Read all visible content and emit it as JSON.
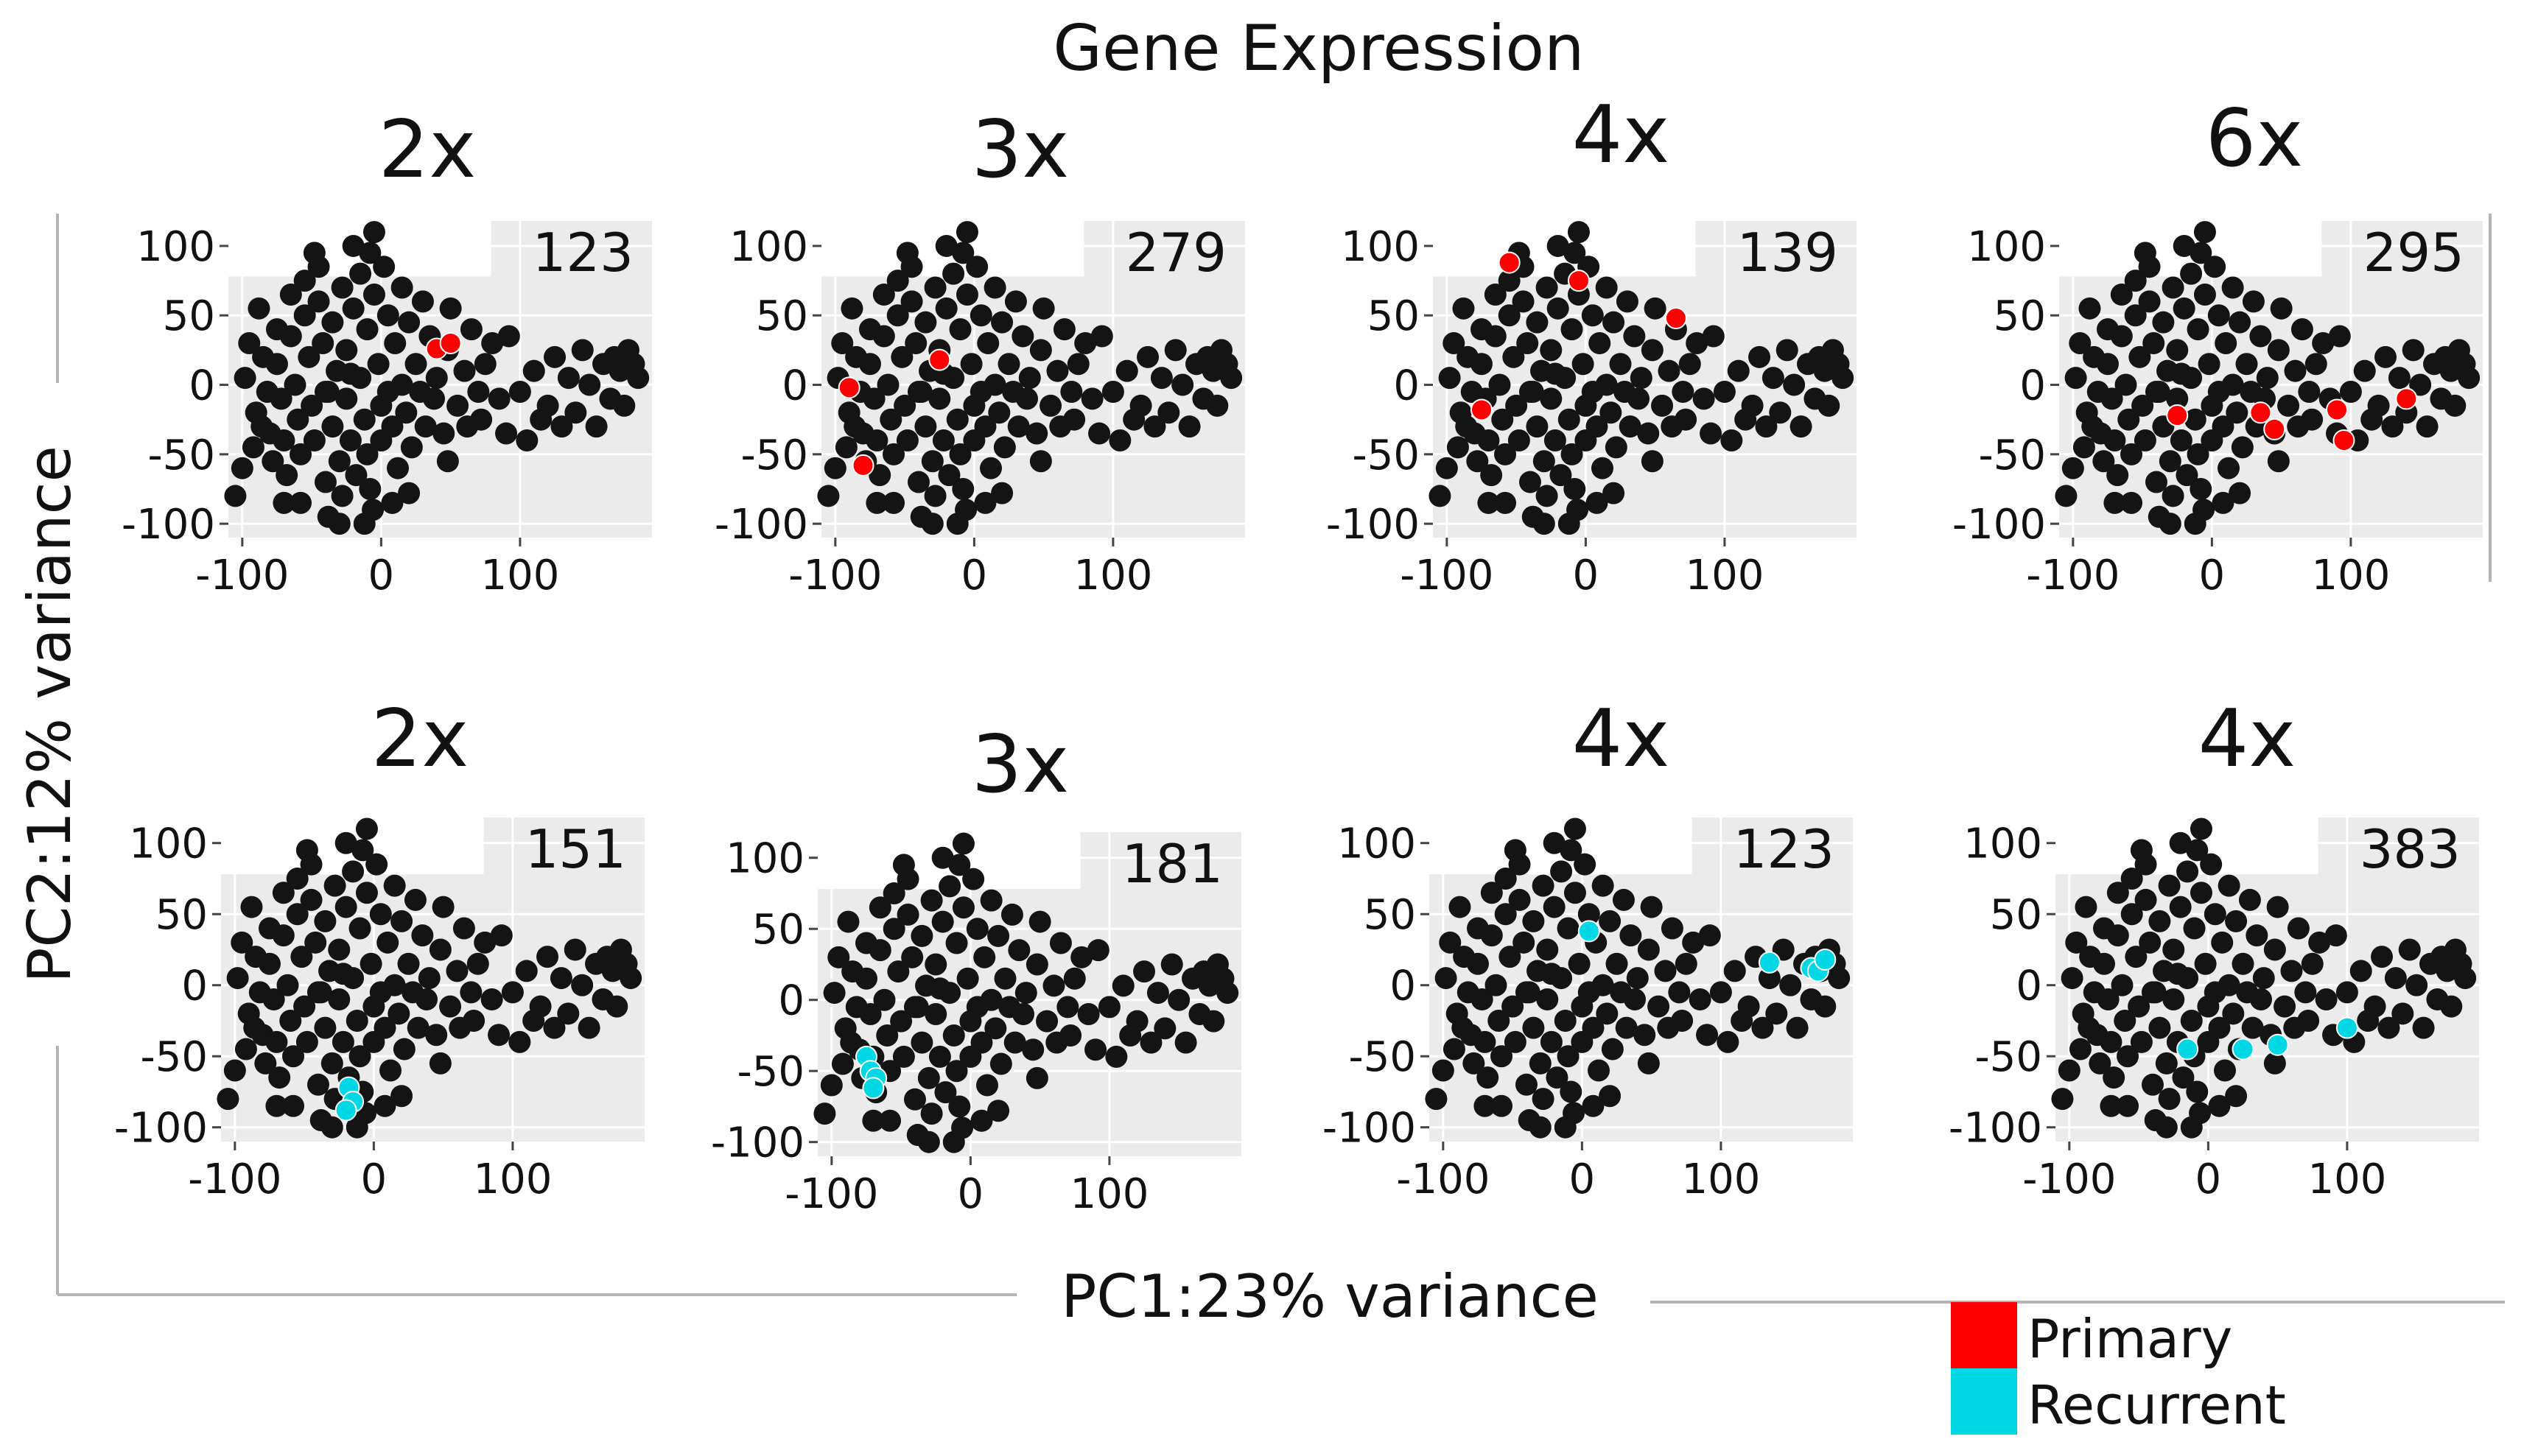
{
  "title": "Gene Expression",
  "x_axis_label": "PC1:23% variance",
  "y_axis_label": "PC2:12% variance",
  "legend": [
    {
      "label": "Primary",
      "color": "#ff0000"
    },
    {
      "label": "Recurrent",
      "color": "#00d8e6"
    }
  ],
  "colors": {
    "base": "#141414",
    "panel_bg": "#ebebeb",
    "grid": "#ffffff",
    "axis_line": "#b4b4b4"
  },
  "chart_data": [
    {
      "type": "scatter",
      "title": "2x",
      "count": "123",
      "highlight": "primary",
      "highlight_points": [
        [
          40,
          26
        ],
        [
          50,
          30
        ]
      ],
      "xlim": [
        -110,
        195
      ],
      "ylim": [
        -110,
        118
      ],
      "xticks": [
        -100,
        0,
        100
      ],
      "yticks": [
        100,
        50,
        0,
        -50,
        -100
      ]
    },
    {
      "type": "scatter",
      "title": "3x",
      "count": "279",
      "highlight": "primary",
      "highlight_points": [
        [
          -90,
          -2
        ],
        [
          -80,
          -58
        ],
        [
          -25,
          18
        ]
      ],
      "xlim": [
        -110,
        195
      ],
      "ylim": [
        -110,
        118
      ],
      "xticks": [
        -100,
        0,
        100
      ],
      "yticks": [
        100,
        50,
        0,
        -50,
        -100
      ]
    },
    {
      "type": "scatter",
      "title": "4x",
      "count": "139",
      "highlight": "primary",
      "highlight_points": [
        [
          -55,
          88
        ],
        [
          -5,
          75
        ],
        [
          65,
          48
        ],
        [
          -75,
          -18
        ]
      ],
      "xlim": [
        -110,
        195
      ],
      "ylim": [
        -110,
        118
      ],
      "xticks": [
        -100,
        0,
        100
      ],
      "yticks": [
        100,
        50,
        0,
        -50,
        -100
      ]
    },
    {
      "type": "scatter",
      "title": "6x",
      "count": "295",
      "highlight": "primary",
      "highlight_points": [
        [
          -25,
          -22
        ],
        [
          35,
          -20
        ],
        [
          45,
          -32
        ],
        [
          90,
          -18
        ],
        [
          95,
          -40
        ],
        [
          140,
          -10
        ]
      ],
      "xlim": [
        -110,
        195
      ],
      "ylim": [
        -110,
        118
      ],
      "xticks": [
        -100,
        0,
        100
      ],
      "yticks": [
        100,
        50,
        0,
        -50,
        -100
      ]
    },
    {
      "type": "scatter",
      "title": "2x",
      "count": "151",
      "highlight": "recurrent",
      "highlight_points": [
        [
          -18,
          -72
        ],
        [
          -15,
          -82
        ],
        [
          -20,
          -88
        ]
      ],
      "xlim": [
        -110,
        195
      ],
      "ylim": [
        -110,
        118
      ],
      "xticks": [
        -100,
        0,
        100
      ],
      "yticks": [
        100,
        50,
        0,
        -50,
        -100
      ]
    },
    {
      "type": "scatter",
      "title": "3x",
      "count": "181",
      "highlight": "recurrent",
      "highlight_points": [
        [
          -75,
          -40
        ],
        [
          -72,
          -50
        ],
        [
          -68,
          -55
        ],
        [
          -70,
          -62
        ]
      ],
      "xlim": [
        -110,
        195
      ],
      "ylim": [
        -110,
        118
      ],
      "xticks": [
        -100,
        0,
        100
      ],
      "yticks": [
        100,
        50,
        0,
        -50,
        -100
      ]
    },
    {
      "type": "scatter",
      "title": "4x",
      "count": "123",
      "highlight": "recurrent",
      "highlight_points": [
        [
          5,
          38
        ],
        [
          135,
          16
        ],
        [
          165,
          12
        ],
        [
          170,
          10
        ],
        [
          175,
          18
        ]
      ],
      "xlim": [
        -110,
        195
      ],
      "ylim": [
        -110,
        118
      ],
      "xticks": [
        -100,
        0,
        100
      ],
      "yticks": [
        100,
        50,
        0,
        -50,
        -100
      ]
    },
    {
      "type": "scatter",
      "title": "4x",
      "count": "383",
      "highlight": "recurrent",
      "highlight_points": [
        [
          -15,
          -45
        ],
        [
          25,
          -45
        ],
        [
          50,
          -42
        ],
        [
          100,
          -30
        ]
      ],
      "xlim": [
        -110,
        195
      ],
      "ylim": [
        -110,
        118
      ],
      "xticks": [
        -100,
        0,
        100
      ],
      "yticks": [
        100,
        50,
        0,
        -50,
        -100
      ]
    }
  ],
  "base_points": [
    [
      -105,
      -80
    ],
    [
      -95,
      30
    ],
    [
      -98,
      5
    ],
    [
      -90,
      -20
    ],
    [
      -88,
      55
    ],
    [
      -85,
      20
    ],
    [
      -82,
      -5
    ],
    [
      -80,
      -35
    ],
    [
      -78,
      -55
    ],
    [
      -75,
      40
    ],
    [
      -75,
      15
    ],
    [
      -72,
      -10
    ],
    [
      -70,
      -40
    ],
    [
      -68,
      -65
    ],
    [
      -65,
      65
    ],
    [
      -65,
      35
    ],
    [
      -62,
      0
    ],
    [
      -60,
      -25
    ],
    [
      -58,
      -50
    ],
    [
      -55,
      75
    ],
    [
      -55,
      50
    ],
    [
      -52,
      20
    ],
    [
      -50,
      -15
    ],
    [
      -48,
      -40
    ],
    [
      -45,
      85
    ],
    [
      -45,
      60
    ],
    [
      -42,
      30
    ],
    [
      -40,
      -5
    ],
    [
      -40,
      -70
    ],
    [
      -38,
      -95
    ],
    [
      -35,
      45
    ],
    [
      -35,
      -30
    ],
    [
      -32,
      10
    ],
    [
      -30,
      -55
    ],
    [
      -28,
      70
    ],
    [
      -28,
      -80
    ],
    [
      -25,
      25
    ],
    [
      -25,
      -10
    ],
    [
      -22,
      -40
    ],
    [
      -20,
      55
    ],
    [
      -18,
      -65
    ],
    [
      -15,
      80
    ],
    [
      -15,
      5
    ],
    [
      -12,
      -25
    ],
    [
      -10,
      40
    ],
    [
      -10,
      -50
    ],
    [
      -8,
      95
    ],
    [
      -8,
      -75
    ],
    [
      -5,
      110
    ],
    [
      -5,
      65
    ],
    [
      -2,
      15
    ],
    [
      0,
      -15
    ],
    [
      0,
      -40
    ],
    [
      2,
      85
    ],
    [
      5,
      50
    ],
    [
      5,
      -5
    ],
    [
      8,
      -30
    ],
    [
      10,
      30
    ],
    [
      12,
      -60
    ],
    [
      15,
      70
    ],
    [
      15,
      0
    ],
    [
      18,
      -20
    ],
    [
      20,
      45
    ],
    [
      22,
      -45
    ],
    [
      25,
      15
    ],
    [
      28,
      -5
    ],
    [
      30,
      60
    ],
    [
      32,
      -30
    ],
    [
      35,
      35
    ],
    [
      38,
      -10
    ],
    [
      40,
      5
    ],
    [
      45,
      -35
    ],
    [
      48,
      25
    ],
    [
      50,
      55
    ],
    [
      55,
      -15
    ],
    [
      60,
      10
    ],
    [
      62,
      -30
    ],
    [
      65,
      40
    ],
    [
      70,
      -5
    ],
    [
      72,
      -25
    ],
    [
      75,
      15
    ],
    [
      80,
      30
    ],
    [
      85,
      -10
    ],
    [
      90,
      -35
    ],
    [
      92,
      35
    ],
    [
      100,
      -5
    ],
    [
      105,
      -40
    ],
    [
      110,
      10
    ],
    [
      115,
      -25
    ],
    [
      120,
      -15
    ],
    [
      125,
      20
    ],
    [
      130,
      -30
    ],
    [
      135,
      5
    ],
    [
      140,
      -20
    ],
    [
      145,
      25
    ],
    [
      150,
      0
    ],
    [
      155,
      -30
    ],
    [
      160,
      15
    ],
    [
      165,
      -10
    ],
    [
      168,
      20
    ],
    [
      172,
      10
    ],
    [
      175,
      -15
    ],
    [
      178,
      25
    ],
    [
      182,
      15
    ],
    [
      185,
      5
    ],
    [
      -100,
      -60
    ],
    [
      -92,
      -45
    ],
    [
      -86,
      -30
    ],
    [
      -58,
      -85
    ],
    [
      -30,
      -100
    ],
    [
      -12,
      -100
    ],
    [
      -6,
      -90
    ],
    [
      8,
      -85
    ],
    [
      20,
      -78
    ],
    [
      -70,
      -85
    ],
    [
      -48,
      95
    ],
    [
      -20,
      100
    ],
    [
      -38,
      -5
    ],
    [
      -22,
      8
    ],
    [
      48,
      -55
    ]
  ]
}
